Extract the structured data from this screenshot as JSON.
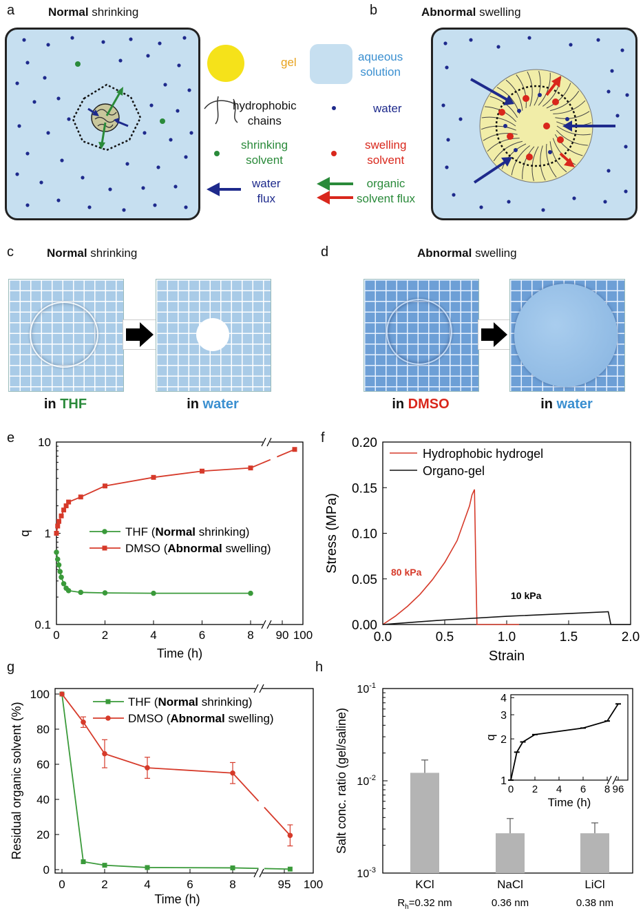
{
  "panels": {
    "a": {
      "letter": "a",
      "title_bold": "Normal",
      "title_rest": " shrinking"
    },
    "b": {
      "letter": "b",
      "title_bold": "Abnormal",
      "title_rest": " swelling"
    },
    "c": {
      "letter": "c",
      "title_bold": "Normal",
      "title_rest": " shrinking",
      "left_pre": "in ",
      "left_solvent": "THF",
      "right_pre": "in ",
      "right_solvent": "water"
    },
    "d": {
      "letter": "d",
      "title_bold": "Abnormal",
      "title_rest": " swelling",
      "left_pre": "in ",
      "left_solvent": "DMSO",
      "right_pre": "in ",
      "right_solvent": "water"
    },
    "e": {
      "letter": "e"
    },
    "f": {
      "letter": "f"
    },
    "g": {
      "letter": "g"
    },
    "h": {
      "letter": "h"
    }
  },
  "legend_ab": {
    "gel": "gel",
    "aqueous_line1": "aqueous",
    "aqueous_line2": "solution",
    "hydrophobic_line1": "hydrophobic",
    "hydrophobic_line2": "chains",
    "water": "water",
    "shrinking_line1": "shrinking",
    "shrinking_line2": "solvent",
    "swelling_line1": "swelling",
    "swelling_line2": "solvent",
    "water_flux_line1": "water",
    "water_flux_line2": "flux",
    "organic_line1": "organic",
    "organic_line2": "solvent flux"
  },
  "colors": {
    "green": "#2a8a3a",
    "red": "#d9271c",
    "navy": "#1e2a8c",
    "gel_yellow": "#f5e21a",
    "solution_blue": "#c6dff0",
    "water_text": "#3a8fd0",
    "chart_red": "#d63a2a",
    "chart_green": "#3a9a3a",
    "bar_gray": "#b4b4b4"
  },
  "chart_data": [
    {
      "panel": "e",
      "type": "line",
      "log_y": true,
      "ylabel": "q",
      "xlabel": "Time (h)",
      "ylim": [
        0.1,
        10
      ],
      "y_ticks": [
        "0.1",
        "1",
        "10"
      ],
      "x_ticks": [
        "0",
        "2",
        "4",
        "6",
        "8",
        "90",
        "100"
      ],
      "axis_break": "//",
      "series": [
        {
          "name_plain": "THF (",
          "name_bold": "Normal",
          "name_end": " shrinking)",
          "color": "#3a9a3a",
          "marker": "circle",
          "x": [
            0,
            0.05,
            0.1,
            0.15,
            0.2,
            0.3,
            0.4,
            0.5,
            1,
            2,
            4,
            8
          ],
          "y": [
            0.62,
            0.52,
            0.45,
            0.38,
            0.33,
            0.28,
            0.25,
            0.235,
            0.225,
            0.222,
            0.22,
            0.22
          ]
        },
        {
          "name_plain": "DMSO (",
          "name_bold": "Abnormal",
          "name_end": " swelling)",
          "color": "#d63a2a",
          "marker": "square",
          "x": [
            0,
            0.05,
            0.1,
            0.2,
            0.3,
            0.4,
            0.5,
            1,
            2,
            4,
            6,
            8,
            96
          ],
          "y": [
            1.0,
            1.2,
            1.35,
            1.55,
            1.8,
            2.0,
            2.2,
            2.5,
            3.3,
            4.1,
            4.8,
            5.2,
            8.3
          ]
        }
      ]
    },
    {
      "panel": "f",
      "type": "line",
      "ylabel": "Stress (MPa)",
      "xlabel": "Strain",
      "xlim": [
        0,
        2
      ],
      "ylim": [
        0,
        0.2
      ],
      "y_ticks": [
        "0.00",
        "0.05",
        "0.10",
        "0.15",
        "0.20"
      ],
      "x_ticks": [
        "0.0",
        "0.5",
        "1.0",
        "1.5",
        "2.0"
      ],
      "annotations": [
        "80 kPa",
        "10 kPa"
      ],
      "series": [
        {
          "name": "Hydrophobic hydrogel",
          "color": "#d63a2a",
          "x": [
            0,
            0.1,
            0.2,
            0.3,
            0.4,
            0.5,
            0.6,
            0.7,
            0.72,
            0.74,
            0.75,
            0.76,
            1.1
          ],
          "y": [
            0,
            0.009,
            0.02,
            0.033,
            0.049,
            0.068,
            0.092,
            0.13,
            0.142,
            0.148,
            0.07,
            0.0,
            0.0
          ]
        },
        {
          "name": "Organo-gel",
          "color": "#111111",
          "x": [
            0,
            0.2,
            0.5,
            1.0,
            1.5,
            1.82,
            1.84,
            2.0
          ],
          "y": [
            0,
            0.002,
            0.005,
            0.009,
            0.012,
            0.014,
            0.0,
            0.0
          ]
        }
      ]
    },
    {
      "panel": "g",
      "type": "line",
      "ylabel": "Residual organic solvent (%)",
      "xlabel": "Time (h)",
      "ylim": [
        0,
        100
      ],
      "y_ticks": [
        "0",
        "20",
        "40",
        "60",
        "80",
        "100"
      ],
      "x_ticks": [
        "0",
        "2",
        "4",
        "6",
        "8",
        "95",
        "100"
      ],
      "axis_break": "//",
      "series": [
        {
          "name_plain": "THF (",
          "name_bold": "Normal",
          "name_end": " shrinking)",
          "color": "#3a9a3a",
          "marker": "square",
          "x": [
            0,
            1,
            2,
            4,
            8,
            96
          ],
          "y": [
            100,
            4.5,
            2.5,
            1.2,
            1.0,
            0.3
          ]
        },
        {
          "name_plain": "DMSO (",
          "name_bold": "Abnormal",
          "name_end": " swelling)",
          "color": "#d63a2a",
          "marker": "circle",
          "x": [
            0,
            1,
            2,
            4,
            8,
            96
          ],
          "y": [
            100,
            84,
            66,
            58,
            55,
            19.5
          ],
          "err": [
            0,
            3,
            8,
            6,
            6,
            6
          ]
        }
      ]
    },
    {
      "panel": "h",
      "type": "bar",
      "log_y": true,
      "ylabel": "Salt conc. ratio (gel/saline)",
      "categories": [
        "KCl",
        "NaCl",
        "LiCl"
      ],
      "sublabels_prefix": "R",
      "sublabels_sub": "h",
      "sublabels": [
        "=0.32 nm",
        "0.36 nm",
        "0.38 nm"
      ],
      "values": [
        0.0122,
        0.0027,
        0.0027
      ],
      "err_upper": [
        0.0168,
        0.0039,
        0.0035
      ],
      "ylim_exp": [
        -3,
        -1
      ],
      "inset": {
        "type": "line",
        "log_y": true,
        "ylabel": "q",
        "xlabel": "Time (h)",
        "y_ticks": [
          "1",
          "2",
          "3",
          "4"
        ],
        "x_ticks": [
          "0",
          "2",
          "4",
          "6",
          "8",
          "96"
        ],
        "axis_break": "//",
        "x": [
          0,
          0.5,
          1,
          2,
          6,
          8,
          96
        ],
        "y": [
          1.0,
          1.6,
          1.9,
          2.15,
          2.4,
          2.7,
          3.6
        ]
      }
    }
  ]
}
